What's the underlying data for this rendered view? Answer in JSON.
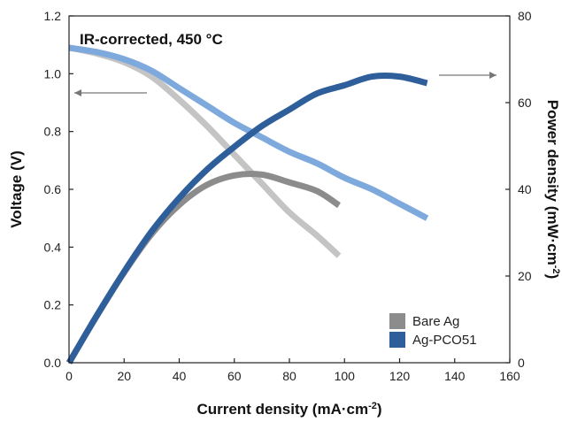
{
  "chart_data": {
    "type": "line",
    "title": "",
    "annotation": "IR-corrected, 450 °C",
    "xlabel": "Current density (mA·cm",
    "xlabel_sup": "-2",
    "xlabel_end": ")",
    "ylabel_left": "Voltage (V)",
    "ylabel_right": "Power density (mW·cm",
    "ylabel_right_sup": "-2",
    "ylabel_right_end": ")",
    "xlim": [
      0,
      160
    ],
    "ylim_left": [
      0,
      1.2
    ],
    "ylim_right": [
      0,
      80
    ],
    "x_ticks": [
      "0",
      "20",
      "40",
      "60",
      "80",
      "100",
      "120",
      "140",
      "160"
    ],
    "y_left_ticks": [
      "0.0",
      "0.2",
      "0.4",
      "0.6",
      "0.8",
      "1.0",
      "1.2"
    ],
    "y_right_ticks": [
      "0",
      "20",
      "40",
      "60",
      "80"
    ],
    "grid": false,
    "legend_position": "bottom-right",
    "legend": [
      {
        "name": "Bare Ag",
        "color": "#8c8c8c"
      },
      {
        "name": "Ag-PCO51",
        "color": "#2e5f9b"
      }
    ],
    "series": [
      {
        "name": "Bare Ag",
        "quantity": "voltage",
        "axis": "left",
        "color": "#c4c4c4",
        "x": [
          0,
          10,
          20,
          30,
          40,
          50,
          60,
          70,
          80,
          90,
          98
        ],
        "y": [
          1.09,
          1.07,
          1.04,
          0.99,
          0.91,
          0.82,
          0.72,
          0.62,
          0.52,
          0.44,
          0.37
        ]
      },
      {
        "name": "Bare Ag",
        "quantity": "power density",
        "axis": "right",
        "color": "#8c8c8c",
        "x": [
          0,
          10,
          20,
          30,
          40,
          50,
          60,
          70,
          80,
          90,
          98
        ],
        "y": [
          0,
          10.7,
          20.8,
          29.7,
          36.4,
          41.0,
          43.2,
          43.4,
          41.6,
          39.6,
          36.3
        ]
      },
      {
        "name": "Ag-PCO51",
        "quantity": "voltage",
        "axis": "left",
        "color": "#7ea9dc",
        "x": [
          0,
          10,
          20,
          30,
          40,
          50,
          60,
          70,
          80,
          90,
          100,
          110,
          120,
          130
        ],
        "y": [
          1.09,
          1.075,
          1.05,
          1.01,
          0.95,
          0.89,
          0.83,
          0.78,
          0.73,
          0.69,
          0.64,
          0.6,
          0.55,
          0.5
        ]
      },
      {
        "name": "Ag-PCO51",
        "quantity": "power density",
        "axis": "right",
        "color": "#2e5f9b",
        "x": [
          0,
          10,
          20,
          30,
          40,
          50,
          60,
          70,
          80,
          90,
          100,
          110,
          120,
          130
        ],
        "y": [
          0,
          10.8,
          21.0,
          30.3,
          38.0,
          44.5,
          49.8,
          54.6,
          58.4,
          62.1,
          64.0,
          66.0,
          66.0,
          64.5
        ]
      }
    ]
  }
}
